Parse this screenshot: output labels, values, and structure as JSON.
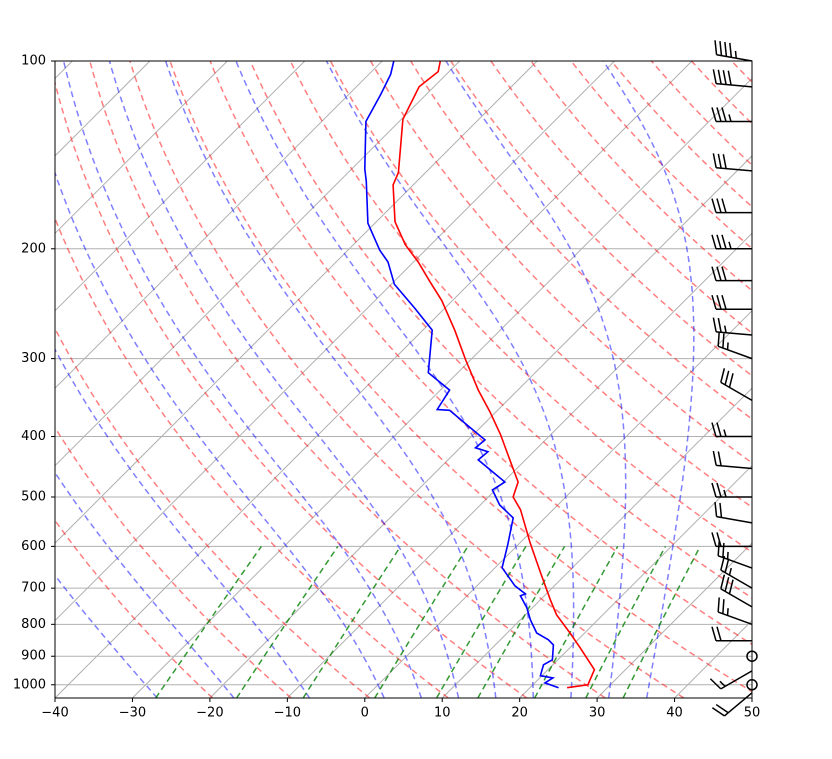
{
  "chart_data": {
    "type": "skewt",
    "ylog": true,
    "ylim": [
      1050,
      100
    ],
    "yticks": [
      100,
      200,
      300,
      400,
      500,
      600,
      700,
      800,
      900,
      1000
    ],
    "xlim": [
      -40,
      50
    ],
    "xticks": [
      {
        "value": -40,
        "label": "−40"
      },
      {
        "value": -30,
        "label": "−30"
      },
      {
        "value": -20,
        "label": "−20"
      },
      {
        "value": -10,
        "label": "−10"
      },
      0,
      10,
      20,
      30,
      40,
      50
    ],
    "grid": true,
    "series": [
      {
        "color": "#ff0000",
        "pressure": [
          1011,
          1000,
          946,
          872,
          826,
          772,
          731,
          661,
          592,
          524,
          500,
          473,
          428,
          397,
          365,
          337,
          301,
          270,
          242,
          226,
          210,
          197,
          181,
          158,
          151,
          124,
          110,
          104,
          100
        ],
        "values": [
          24.8,
          27.1,
          26.0,
          21.3,
          18.1,
          14.0,
          11.3,
          6.5,
          1.3,
          -4.2,
          -6.8,
          -8.1,
          -12.9,
          -16.5,
          -20.8,
          -25.1,
          -30.7,
          -35.9,
          -41.4,
          -45.3,
          -49.4,
          -53.3,
          -57.6,
          -62.6,
          -63.5,
          -69.8,
          -71.9,
          -71.4,
          -72.5
        ]
      },
      {
        "color": "#0000ff",
        "pressure": [
          1011,
          993,
          975,
          967,
          929,
          912,
          863,
          847,
          826,
          787,
          753,
          720,
          715,
          694,
          649,
          597,
          540,
          515,
          487,
          473,
          452,
          436,
          423,
          417,
          405,
          387,
          363,
          362,
          337,
          316,
          270,
          249,
          228,
          210,
          201,
          182,
          156,
          149,
          125,
          113,
          105,
          100
        ],
        "values": [
          23.7,
          21.3,
          21.7,
          19.8,
          18.8,
          19.3,
          17.5,
          16.2,
          13.8,
          11.3,
          9.3,
          6.9,
          7.3,
          4.9,
          0.9,
          -1.3,
          -4.1,
          -7.5,
          -10.4,
          -9.8,
          -13.3,
          -16.1,
          -15.9,
          -18.0,
          -17.8,
          -21.3,
          -26.2,
          -27.9,
          -28.8,
          -33.8,
          -38.8,
          -43.9,
          -49.6,
          -53.3,
          -55.9,
          -60.9,
          -66.5,
          -68.3,
          -74.3,
          -75.9,
          -77.2,
          -78.5
        ]
      }
    ],
    "wind": {
      "color": "#000000",
      "pressure": [
        1030,
        1000,
        950,
        900,
        850,
        800,
        750,
        700,
        650,
        600,
        550,
        500,
        450,
        400,
        350,
        300,
        275,
        250,
        225,
        200,
        175,
        150,
        125,
        110,
        100
      ],
      "speed": [
        20,
        0,
        15,
        0,
        20,
        25,
        30,
        25,
        25,
        20,
        20,
        25,
        20,
        25,
        30,
        25,
        25,
        30,
        30,
        35,
        30,
        30,
        35,
        40,
        45
      ],
      "direction": [
        230,
        0,
        240,
        0,
        270,
        290,
        300,
        300,
        290,
        270,
        280,
        270,
        275,
        270,
        300,
        290,
        275,
        270,
        270,
        270,
        270,
        275,
        270,
        275,
        280
      ]
    }
  }
}
